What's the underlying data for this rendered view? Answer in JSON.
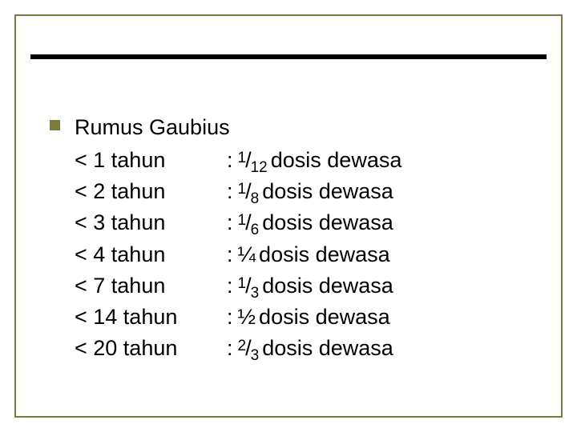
{
  "style": {
    "background_color": "#ffffff",
    "frame_border_color": "#7a7a3a",
    "frame_border_width": 2,
    "accent_line_color": "#000000",
    "accent_line_height": 6,
    "bullet_color": "#7a7a3a",
    "bullet_size": 13,
    "text_color": "#000000",
    "font_family": "Arial",
    "body_fontsize": 27,
    "fraction_small_fontsize": 19
  },
  "content": {
    "heading": "Rumus Gaubius",
    "suffix": "dosis dewasa",
    "rows": [
      {
        "age": "< 1 tahun",
        "frac_num": "1",
        "frac_den": "12",
        "unicode_frac": null
      },
      {
        "age": "< 2 tahun",
        "frac_num": "1",
        "frac_den": "8",
        "unicode_frac": null
      },
      {
        "age": "< 3 tahun",
        "frac_num": "1",
        "frac_den": "6",
        "unicode_frac": null
      },
      {
        "age": "< 4 tahun",
        "frac_num": null,
        "frac_den": null,
        "unicode_frac": "¼"
      },
      {
        "age": "< 7 tahun",
        "frac_num": "1",
        "frac_den": "3",
        "unicode_frac": null
      },
      {
        "age": "< 14 tahun",
        "frac_num": null,
        "frac_den": null,
        "unicode_frac": "½"
      },
      {
        "age": "< 20 tahun",
        "frac_num": "2",
        "frac_den": "3",
        "unicode_frac": null
      }
    ]
  }
}
